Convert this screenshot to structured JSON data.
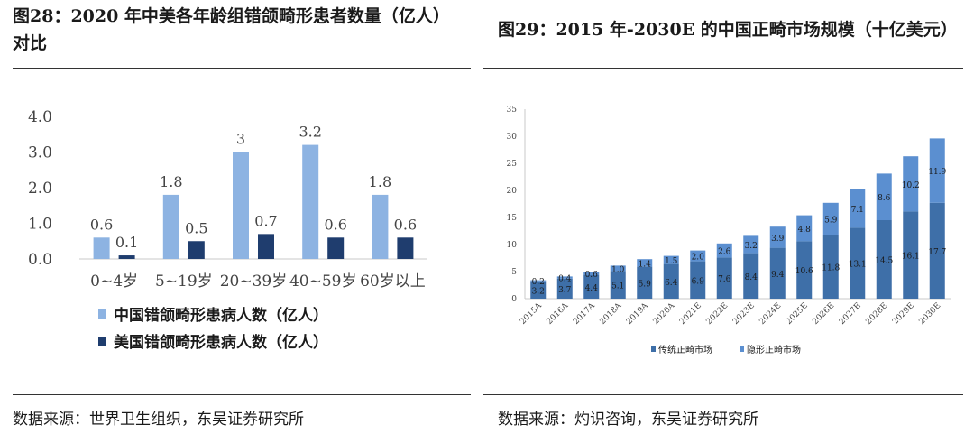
{
  "left": {
    "title": "图28：2020 年中美各年龄组错颌畸形患者数量（亿人）对比",
    "source": "数据来源：世界卫生组织，东吴证券研究所",
    "chart_data": {
      "type": "bar",
      "title": "2020 年中美各年龄组错颌畸形患者数量（亿人）对比",
      "categories": [
        "0~4岁",
        "5~19岁",
        "20~39岁",
        "40~59岁",
        "60岁以上"
      ],
      "series": [
        {
          "name": "中国错颌畸形患病人数（亿人）",
          "color": "#8db3e2",
          "values": [
            0.6,
            1.8,
            3,
            3.2,
            1.8
          ],
          "labels": [
            "0.6",
            "1.8",
            "3",
            "3.2",
            "1.8"
          ]
        },
        {
          "name": "美国错颌畸形患病人数（亿人）",
          "color": "#1f3d6e",
          "values": [
            0.1,
            0.5,
            0.7,
            0.6,
            0.6
          ],
          "labels": [
            "0.1",
            "0.5",
            "0.7",
            "0.6",
            "0.6"
          ]
        }
      ],
      "yticks": [
        "0.0",
        "1.0",
        "2.0",
        "3.0",
        "4.0"
      ],
      "ylim": [
        0,
        4
      ],
      "legend": "bottom"
    }
  },
  "right": {
    "title": "图29：2015 年-2030E 的中国正畸市场规模（十亿美元）",
    "source": "数据来源：灼识咨询，东吴证券研究所",
    "chart_data": {
      "type": "bar",
      "stacked": true,
      "title": "2015 年-2030E 的中国正畸市场规模（十亿美元）",
      "categories": [
        "2015A",
        "2016A",
        "2017A",
        "2018A",
        "2019A",
        "2020A",
        "2021E",
        "2022E",
        "2023E",
        "2024E",
        "2025E",
        "2026E",
        "2027E",
        "2028E",
        "2029E",
        "2030E"
      ],
      "series": [
        {
          "name": "传统正畸市场",
          "color": "#3e6fa8",
          "values": [
            3.2,
            3.7,
            4.4,
            5.1,
            5.9,
            6.4,
            6.9,
            7.6,
            8.4,
            9.4,
            10.6,
            11.8,
            13.1,
            14.5,
            16.1,
            17.7
          ],
          "labels": [
            "3.2",
            "3.7",
            "4.4",
            "5.1",
            "5.9",
            "6.4",
            "6.9",
            "7.6",
            "8.4",
            "9.4",
            "10.6",
            "11.8",
            "13.1",
            "14.5",
            "16.1",
            "17.7"
          ]
        },
        {
          "name": "隐形正畸市场",
          "color": "#5b8fd0",
          "values": [
            0.2,
            0.4,
            0.6,
            1.0,
            1.4,
            1.5,
            2.0,
            2.6,
            3.2,
            3.9,
            4.8,
            5.9,
            7.1,
            8.6,
            10.2,
            11.9
          ],
          "labels": [
            "0.2",
            "0.4",
            "0.6",
            "1.0",
            "1.4",
            "1.5",
            "2.0",
            "2.6",
            "3.2",
            "3.9",
            "4.8",
            "5.9",
            "7.1",
            "8.6",
            "10.2",
            "11.9"
          ]
        }
      ],
      "yticks": [
        "0",
        "5",
        "10",
        "15",
        "20",
        "25",
        "30",
        "35"
      ],
      "ylim": [
        0,
        35
      ],
      "legend": "bottom"
    }
  }
}
